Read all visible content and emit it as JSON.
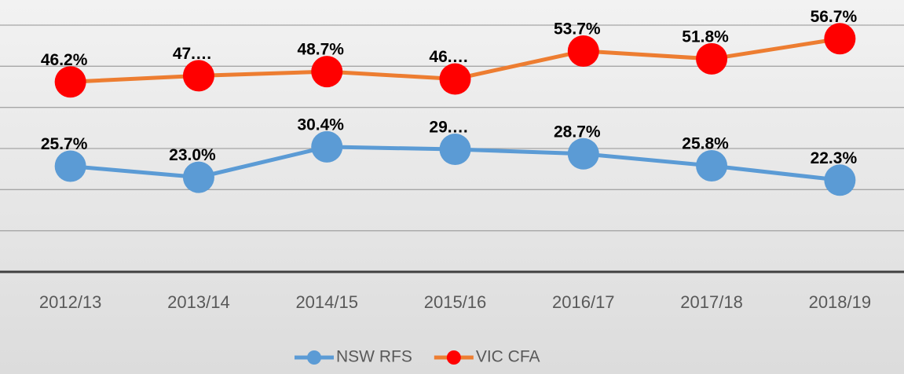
{
  "chart_data": {
    "type": "line",
    "categories": [
      "2012/13",
      "2013/14",
      "2014/15",
      "2015/16",
      "2016/17",
      "2017/18",
      "2018/19"
    ],
    "series": [
      {
        "name": "NSW RFS",
        "color": "#5b9bd5",
        "marker_color": "#5b9bd5",
        "values": [
          25.7,
          23.0,
          30.4,
          29.8,
          28.7,
          25.8,
          22.3
        ],
        "value_labels": [
          "25.7%",
          "23.0%",
          "30.4%",
          "29.…",
          "28.7%",
          "25.8%",
          "22.3%"
        ]
      },
      {
        "name": "VIC CFA",
        "color": "#ed7d31",
        "marker_color": "#ff0000",
        "values": [
          46.2,
          47.7,
          48.7,
          46.9,
          53.7,
          51.8,
          56.7
        ],
        "value_labels": [
          "46.2%",
          "47.…",
          "48.7%",
          "46.…",
          "53.7%",
          "51.8%",
          "56.7%"
        ]
      }
    ],
    "ylim": [
      0,
      60
    ],
    "yticks": [
      0,
      10,
      20,
      30,
      40,
      50,
      60
    ],
    "grid": true,
    "legend": "bottom"
  }
}
